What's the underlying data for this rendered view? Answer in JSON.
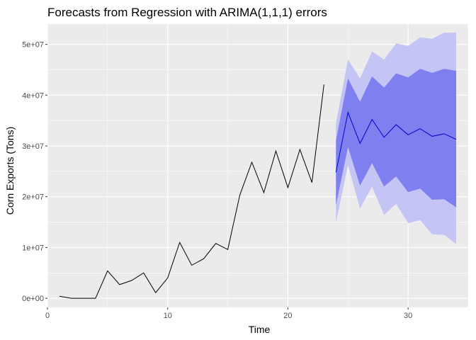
{
  "chart_data": {
    "type": "line",
    "title": "Forecasts from Regression with ARIMA(1,1,1) errors",
    "xlabel": "Time",
    "ylabel": "Corn Exports (Tons)",
    "xlim": [
      0,
      35
    ],
    "ylim": [
      -1800000,
      54000000
    ],
    "x_ticks": [
      0,
      10,
      20,
      30
    ],
    "x_tick_labels": [
      "0",
      "10",
      "20",
      "30"
    ],
    "y_ticks": [
      0,
      10000000,
      20000000,
      30000000,
      40000000,
      50000000
    ],
    "y_tick_labels": [
      "0e+00",
      "1e+07",
      "2e+07",
      "3e+07",
      "4e+07",
      "5e+07"
    ],
    "grid": true,
    "observed": {
      "x": [
        1,
        2,
        3,
        4,
        5,
        6,
        7,
        8,
        9,
        10,
        11,
        12,
        13,
        14,
        15,
        16,
        17,
        18,
        19,
        20,
        21,
        22,
        23
      ],
      "y": [
        400000,
        0,
        0,
        0,
        5400000,
        2700000,
        3500000,
        5000000,
        1100000,
        4000000,
        11000000,
        6500000,
        7800000,
        10800000,
        9600000,
        20300000,
        26800000,
        20800000,
        29000000,
        21800000,
        29300000,
        22800000,
        42100000
      ]
    },
    "forecast": {
      "x": [
        24,
        25,
        26,
        27,
        28,
        29,
        30,
        31,
        32,
        33,
        34
      ],
      "mean": [
        24800000,
        36600000,
        30500000,
        35200000,
        31700000,
        34200000,
        32200000,
        33400000,
        31900000,
        32400000,
        31300000
      ],
      "lo80": [
        18400000,
        29800000,
        22200000,
        26600000,
        22000000,
        24000000,
        20900000,
        21600000,
        19400000,
        19500000,
        17900000
      ],
      "hi80": [
        31100000,
        43300000,
        38700000,
        43700000,
        41500000,
        44300000,
        43500000,
        45200000,
        44400000,
        45200000,
        44800000
      ],
      "lo95": [
        15000000,
        26200000,
        17700000,
        22000000,
        16400000,
        18600000,
        14800000,
        15400000,
        12600000,
        12500000,
        10700000
      ],
      "hi95": [
        34500000,
        47000000,
        43300000,
        48600000,
        47000000,
        50200000,
        49700000,
        51400000,
        51100000,
        52300000,
        52300000
      ]
    },
    "colors": {
      "panel": "#ebebeb",
      "grid_major": "#ffffff",
      "observed_line": "#000000",
      "forecast_line": "#0000cc",
      "band_80": "#7f7fef",
      "band_95": "#c4c4f5"
    }
  }
}
